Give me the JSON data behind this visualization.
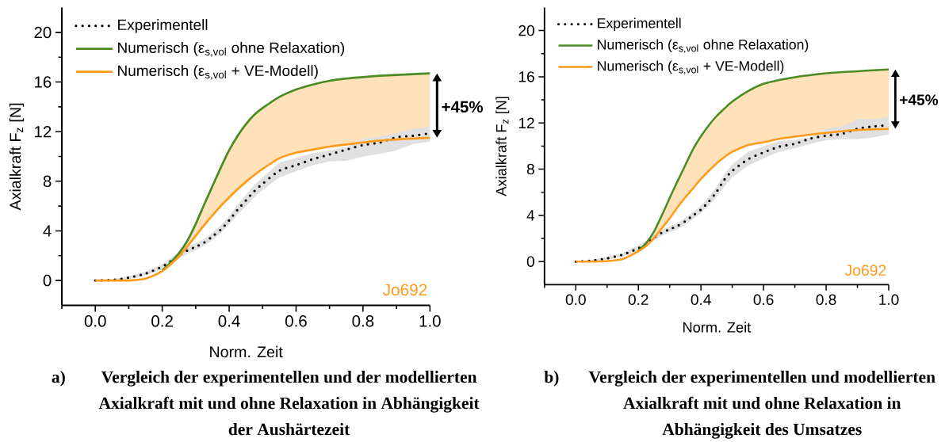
{
  "chart_data": [
    {
      "type": "line",
      "xlabel": "Norm. Zeit",
      "ylabel": "Axialkraft F$_{z}$ [N]",
      "legend": "top left",
      "xlim": [
        -0.1,
        1
      ],
      "ylim": [
        -2,
        22
      ],
      "xticks": [
        {
          "value": -0.1,
          "label": null
        },
        {
          "value": 0,
          "label": "0.0"
        },
        {
          "value": 0.1,
          "label": null
        },
        0.2,
        {
          "value": 0.3,
          "label": null
        },
        0.4,
        {
          "value": 0.5,
          "label": null
        },
        0.6,
        {
          "value": 0.7,
          "label": null
        },
        0.8,
        {
          "value": 0.9,
          "label": null
        },
        {
          "value": 1,
          "label": "1.0"
        }
      ],
      "yticks": [
        0,
        {
          "value": 2,
          "label": null
        },
        4,
        {
          "value": 6,
          "label": null
        },
        8,
        {
          "value": 10,
          "label": null
        },
        12,
        {
          "value": 14,
          "label": null
        },
        16,
        {
          "value": 18,
          "label": null
        },
        20
      ],
      "x": [
        0,
        0.05,
        0.1,
        0.15,
        0.2,
        0.225,
        0.25,
        0.275,
        0.3,
        0.325,
        0.35,
        0.375,
        0.4,
        0.425,
        0.45,
        0.475,
        0.5,
        0.55,
        0.6,
        0.65,
        0.7,
        0.75,
        0.8,
        0.85,
        0.9,
        0.95,
        1
      ],
      "series": [
        {
          "name": "Experimentell",
          "color": "#000000",
          "line_style": "dotted",
          "values": [
            0,
            0.04,
            0.23,
            0.55,
            1.12,
            1.55,
            2.03,
            2.42,
            2.72,
            3.05,
            3.55,
            4.1,
            4.85,
            5.7,
            6.45,
            7.2,
            7.8,
            8.85,
            9.3,
            9.78,
            10.16,
            10.55,
            10.92,
            11.12,
            11.55,
            11.67,
            11.87
          ],
          "lower": [
            0,
            0,
            0.1,
            0.4,
            0.9,
            1.3,
            1.75,
            2.15,
            2.45,
            2.8,
            3.25,
            3.8,
            4.5,
            5.3,
            6.0,
            6.7,
            7.3,
            8.3,
            8.8,
            9.3,
            9.6,
            9.65,
            10.0,
            10.2,
            10.5,
            11.0,
            11.2
          ],
          "upper": [
            0,
            0.1,
            0.35,
            0.7,
            1.35,
            1.8,
            2.3,
            2.7,
            3.0,
            3.35,
            3.85,
            4.45,
            5.2,
            6.1,
            6.9,
            7.7,
            8.3,
            9.5,
            9.9,
            10.25,
            10.5,
            10.75,
            11.4,
            11.6,
            11.9,
            12.2,
            12.4
          ]
        },
        {
          "name": "Numerisch (ε$_{s,vol}$ ohne Relaxation)",
          "color": "#4a8c23",
          "values": [
            null,
            null,
            null,
            null,
            0.8,
            1.45,
            2.2,
            3.2,
            4.55,
            6.1,
            7.6,
            9.1,
            10.5,
            11.65,
            12.6,
            13.35,
            13.9,
            14.8,
            15.4,
            15.8,
            16.1,
            16.28,
            16.4,
            16.5,
            16.57,
            16.64,
            16.7
          ]
        },
        {
          "name": "Numerisch (ε$_{s,vol}$ + VE-Modell)",
          "color": "#ff9a1a",
          "values": [
            0,
            0,
            0,
            0.15,
            0.75,
            1.3,
            1.95,
            2.75,
            3.6,
            4.45,
            5.25,
            6.0,
            6.7,
            7.35,
            7.95,
            8.5,
            9.0,
            9.85,
            10.3,
            10.55,
            10.8,
            10.97,
            11.13,
            11.27,
            11.37,
            11.45,
            11.5
          ],
          "lower": [
            0,
            0,
            0,
            0.15,
            0.75,
            1.3,
            1.95,
            2.75,
            3.6,
            4.45,
            5.25,
            6.0,
            6.7,
            7.35,
            7.95,
            8.5,
            9.0,
            9.85,
            10.3,
            10.55,
            10.8,
            10.97,
            11.13,
            11.27,
            11.37,
            11.45,
            11.5
          ],
          "upper": [
            0,
            0,
            0,
            0.15,
            0.8,
            1.45,
            2.2,
            3.2,
            4.55,
            6.1,
            7.6,
            9.1,
            10.5,
            11.65,
            12.6,
            13.35,
            13.9,
            14.8,
            15.4,
            15.8,
            16.1,
            16.28,
            16.4,
            16.5,
            16.57,
            16.64,
            16.7
          ]
        }
      ],
      "annotations": [
        {
          "text": "+45%",
          "x": 1,
          "y": 14
        },
        "Jo692",
        "a)",
        "Vergleich der experimentellen und der modellierten Axialkraft mit und ohne Relaxation in Abhängigkeit der Aushärtezeit"
      ]
    },
    {
      "type": "line",
      "xlabel": "Norm. Zeit",
      "ylabel": "Axialkraft F$_{z}$ [N]",
      "legend": "top left",
      "xlim": [
        -0.1,
        1
      ],
      "ylim": [
        -2,
        22
      ],
      "xticks": [
        {
          "value": -0.1,
          "label": null
        },
        {
          "value": 0,
          "label": "0.0"
        },
        {
          "value": 0.1,
          "label": null
        },
        0.2,
        {
          "value": 0.3,
          "label": null
        },
        0.4,
        {
          "value": 0.5,
          "label": null
        },
        0.6,
        {
          "value": 0.7,
          "label": null
        },
        0.8,
        {
          "value": 0.9,
          "label": null
        },
        {
          "value": 1,
          "label": "1.0"
        }
      ],
      "yticks": [
        0,
        {
          "value": 2,
          "label": null
        },
        4,
        {
          "value": 6,
          "label": null
        },
        8,
        {
          "value": 10,
          "label": null
        },
        12,
        {
          "value": 14,
          "label": null
        },
        16,
        {
          "value": 18,
          "label": null
        },
        20
      ],
      "x": [
        0,
        0.05,
        0.1,
        0.15,
        0.2,
        0.225,
        0.25,
        0.275,
        0.3,
        0.325,
        0.35,
        0.375,
        0.4,
        0.425,
        0.45,
        0.475,
        0.5,
        0.55,
        0.6,
        0.65,
        0.7,
        0.75,
        0.8,
        0.85,
        0.9,
        0.95,
        1
      ],
      "series": [
        {
          "name": "Experimentell",
          "color": "#000000",
          "line_style": "dotted",
          "values": [
            0,
            0.08,
            0.28,
            0.6,
            1.15,
            1.55,
            2.07,
            2.5,
            2.8,
            3.08,
            3.5,
            4.0,
            4.5,
            5.2,
            6.05,
            7.1,
            7.85,
            8.85,
            9.45,
            9.95,
            10.2,
            10.65,
            10.9,
            11.05,
            11.5,
            11.7,
            11.8
          ],
          "lower": [
            0,
            0,
            0.15,
            0.45,
            0.9,
            1.3,
            1.8,
            2.25,
            2.55,
            2.8,
            3.2,
            3.7,
            4.2,
            4.85,
            5.6,
            6.5,
            7.3,
            8.3,
            8.95,
            9.5,
            9.8,
            10.2,
            10.5,
            10.6,
            10.6,
            10.75,
            11.0
          ],
          "upper": [
            0,
            0.15,
            0.4,
            0.75,
            1.4,
            1.8,
            2.35,
            2.75,
            3.05,
            3.35,
            3.8,
            4.3,
            4.85,
            5.6,
            6.5,
            7.6,
            8.4,
            9.5,
            10.0,
            10.4,
            10.55,
            10.75,
            11.5,
            11.7,
            12.3,
            12.35,
            12.5
          ]
        },
        {
          "name": "Numerisch (ε$_{s,vol}$ ohne Relaxation)",
          "color": "#4a8c23",
          "values": [
            null,
            null,
            null,
            null,
            0.95,
            1.6,
            2.6,
            4.0,
            5.5,
            6.95,
            8.35,
            9.75,
            10.85,
            11.8,
            12.6,
            13.25,
            13.85,
            14.75,
            15.39,
            15.72,
            15.96,
            16.15,
            16.3,
            16.4,
            16.48,
            16.56,
            16.63
          ]
        },
        {
          "name": "Numerisch (ε$_{s,vol}$ + VE-Modell)",
          "color": "#ff9a1a",
          "values": [
            0,
            0,
            0.04,
            0.22,
            0.9,
            1.35,
            2.05,
            2.88,
            3.75,
            4.7,
            5.55,
            6.35,
            7.15,
            7.85,
            8.5,
            9.05,
            9.5,
            10.08,
            10.33,
            10.63,
            10.82,
            10.99,
            11.15,
            11.28,
            11.39,
            11.45,
            11.49
          ],
          "lower": [
            0,
            0,
            0.04,
            0.22,
            0.9,
            1.35,
            2.05,
            2.88,
            3.75,
            4.7,
            5.55,
            6.35,
            7.15,
            7.85,
            8.5,
            9.05,
            9.5,
            10.08,
            10.33,
            10.63,
            10.82,
            10.99,
            11.15,
            11.28,
            11.39,
            11.45,
            11.49
          ],
          "upper": [
            0,
            0,
            0.04,
            0.22,
            0.95,
            1.6,
            2.6,
            4.0,
            5.5,
            6.95,
            8.35,
            9.75,
            10.85,
            11.8,
            12.6,
            13.25,
            13.85,
            14.75,
            15.39,
            15.72,
            15.96,
            16.15,
            16.3,
            16.4,
            16.48,
            16.56,
            16.63
          ]
        }
      ],
      "annotations": [
        {
          "text": "+45%",
          "x": 1,
          "y": 14
        },
        "Jo692",
        "b)",
        "Vergleich der experimentellen und modellierten Axialkraft mit und ohne Relaxation in Abhängigkeit des Umsatzes"
      ]
    }
  ]
}
